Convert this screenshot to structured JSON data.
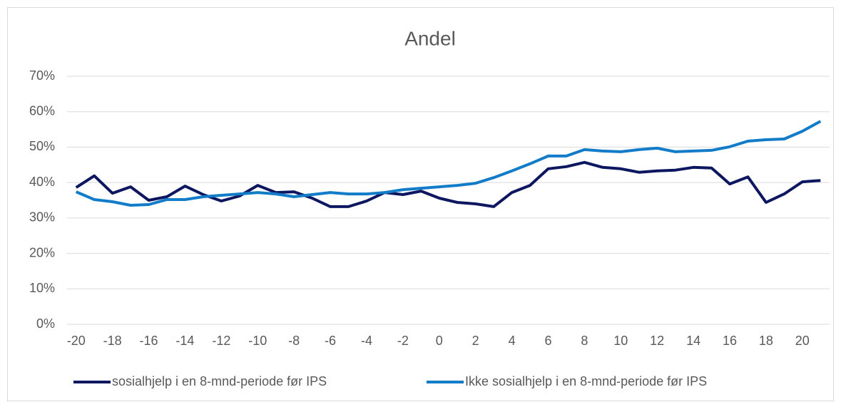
{
  "chart_data": {
    "type": "line",
    "title": "Andel",
    "categories": [
      -20,
      null,
      -18,
      null,
      -16,
      null,
      -14,
      null,
      -12,
      null,
      -10,
      null,
      -8,
      null,
      -6,
      null,
      -4,
      null,
      -2,
      null,
      0,
      null,
      2,
      null,
      4,
      null,
      6,
      null,
      8,
      null,
      10,
      null,
      12,
      null,
      14,
      null,
      16,
      null,
      18,
      null,
      20,
      null
    ],
    "series": [
      {
        "name": "sosialhjelp i en 8-mnd-periode før IPS",
        "color": "#0d1760",
        "values": [
          38.6,
          41.9,
          37.0,
          38.8,
          35.0,
          36.0,
          39.0,
          36.6,
          34.8,
          36.2,
          39.2,
          37.2,
          37.4,
          35.6,
          33.2,
          33.2,
          34.8,
          37.2,
          36.6,
          37.6,
          35.6,
          34.4,
          34.0,
          33.2,
          37.2,
          39.2,
          43.9,
          44.5,
          45.7,
          44.3,
          43.9,
          42.9,
          43.3,
          43.5,
          44.3,
          44.1,
          39.6,
          41.6,
          34.4,
          36.8,
          40.2,
          40.6
        ]
      },
      {
        "name": "Ikke sosialhjelp i en 8-mnd-periode før IPS",
        "color": "#127cc8",
        "values": [
          37.4,
          35.2,
          34.6,
          33.6,
          33.8,
          35.2,
          35.2,
          36.0,
          36.4,
          36.8,
          37.2,
          36.8,
          36.0,
          36.6,
          37.2,
          36.8,
          36.8,
          37.2,
          38.0,
          38.4,
          38.8,
          39.2,
          39.8,
          41.4,
          43.3,
          45.3,
          47.5,
          47.5,
          49.3,
          48.9,
          48.7,
          49.3,
          49.7,
          48.7,
          48.9,
          49.1,
          50.1,
          51.7,
          52.1,
          52.3,
          54.5,
          57.3
        ]
      }
    ],
    "ylim": [
      0,
      70
    ],
    "yticks": [
      {
        "value": 0,
        "label": "0%"
      },
      {
        "value": 10,
        "label": "10%"
      },
      {
        "value": 20,
        "label": "20%"
      },
      {
        "value": 30,
        "label": "30%"
      },
      {
        "value": 40,
        "label": "40%"
      },
      {
        "value": 50,
        "label": "50%"
      },
      {
        "value": 60,
        "label": "60%"
      },
      {
        "value": 70,
        "label": "70%"
      }
    ],
    "grid": true,
    "legend": "bottom"
  }
}
